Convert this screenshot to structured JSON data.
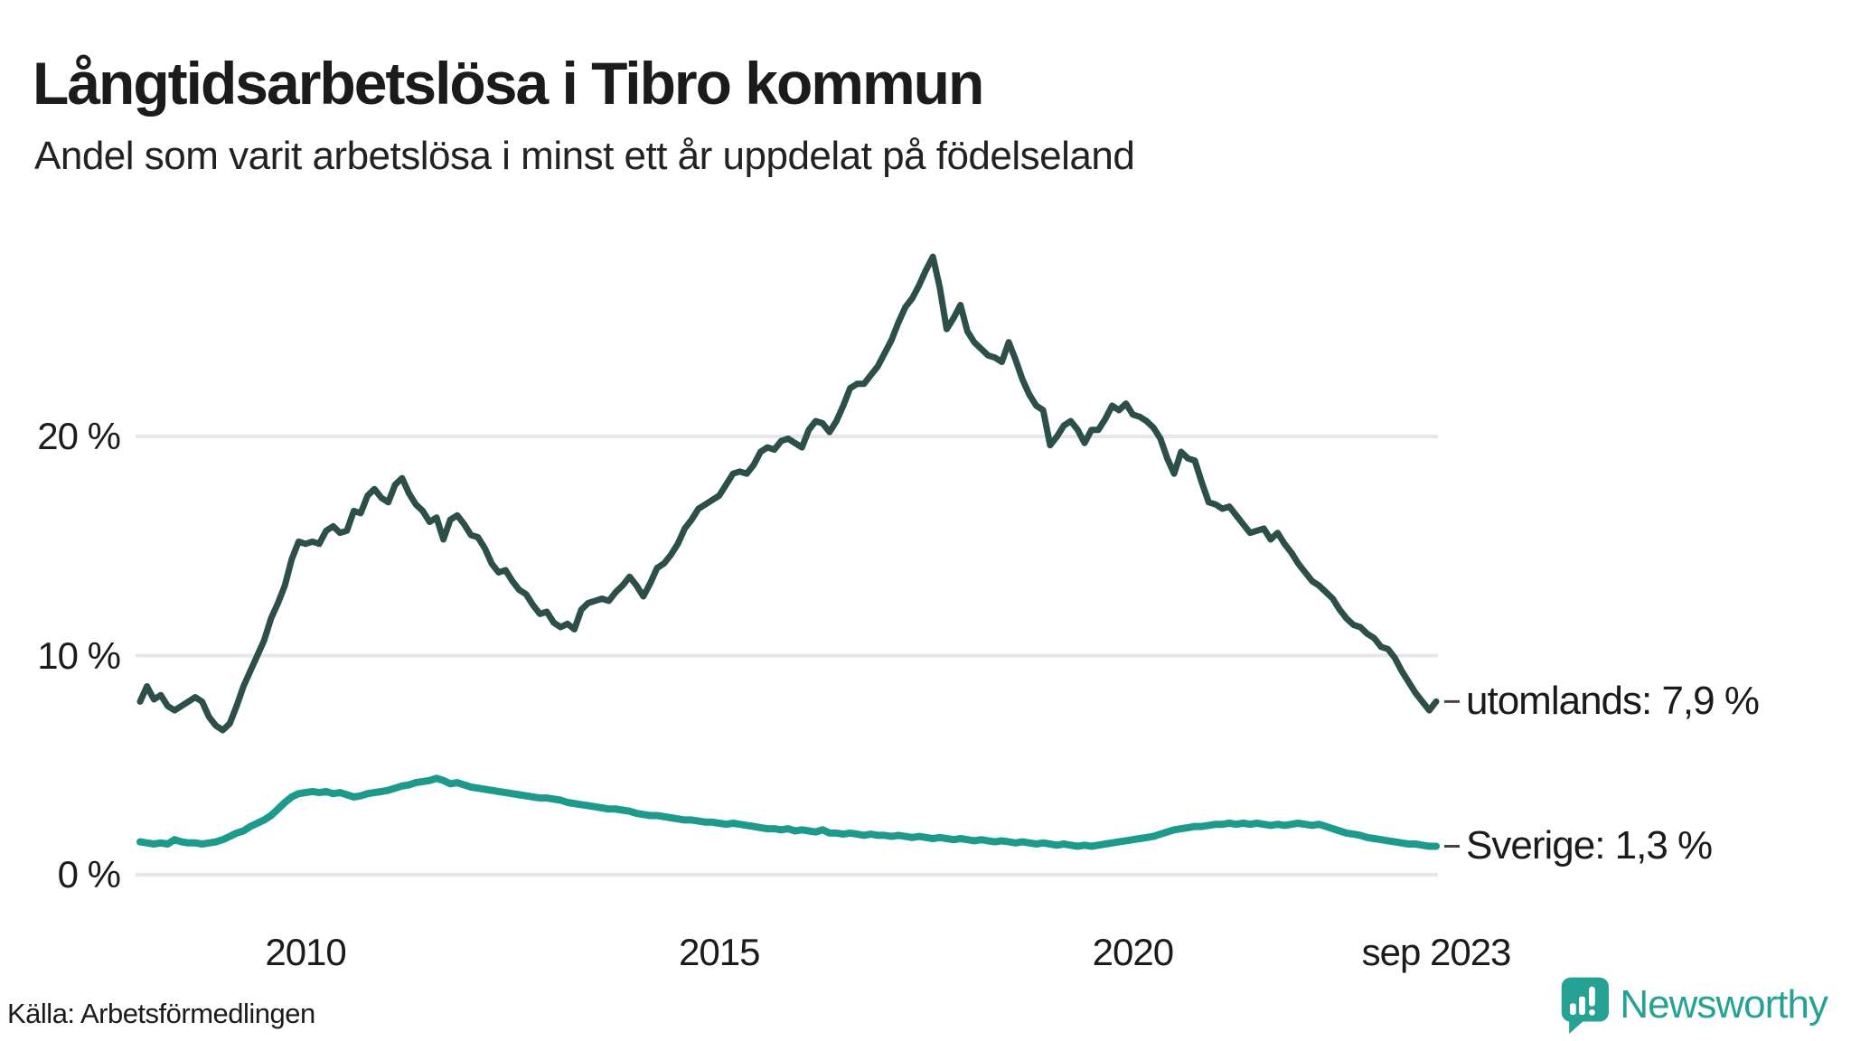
{
  "title": "Långtidsarbetslösa i Tibro kommun",
  "subtitle": "Andel som varit arbetslösa i minst ett år uppdelat på födelseland",
  "source": "Källa: Arbetsförmedlingen",
  "branding": {
    "name": "Newsworthy",
    "color": "#26a294"
  },
  "colors": {
    "background": "#ffffff",
    "grid": "#e7e7ea",
    "text": "#1b1b1b",
    "utomlands_line": "#2c4f49",
    "sverige_line": "#1d9a8c"
  },
  "chart_data": {
    "type": "line",
    "title": "Långtidsarbetslösa i Tibro kommun",
    "subtitle": "Andel som varit arbetslösa i minst ett år uppdelat på födelseland",
    "x_start": "2008-01",
    "x_end": "2023-09",
    "x_frequency": "monthly",
    "grid": "horizontal",
    "legend_position": "end-of-line-labels",
    "ylim": [
      0,
      29.5
    ],
    "unit": "%",
    "y_ticks": [
      {
        "label": "0 %",
        "value": 0
      },
      {
        "label": "10 %",
        "value": 10
      },
      {
        "label": "20 %",
        "value": 20
      }
    ],
    "x_ticks": [
      {
        "label": "2010",
        "month_index": 24
      },
      {
        "label": "2015",
        "month_index": 84
      },
      {
        "label": "2020",
        "month_index": 144
      },
      {
        "label": "sep 2023",
        "month_index": 188
      }
    ],
    "series": [
      {
        "name": "utomlands",
        "end_label": "utomlands: 7,9 %",
        "last_value": 7.9,
        "color": "#2c4f49",
        "values": [
          7.9,
          8.6,
          8.0,
          8.2,
          7.7,
          7.5,
          7.7,
          7.9,
          8.1,
          7.9,
          7.2,
          6.8,
          6.6,
          6.9,
          7.7,
          8.6,
          9.3,
          10.0,
          10.7,
          11.7,
          12.4,
          13.2,
          14.4,
          15.2,
          15.1,
          15.2,
          15.1,
          15.7,
          15.9,
          15.6,
          15.7,
          16.6,
          16.5,
          17.3,
          17.6,
          17.2,
          17.0,
          17.8,
          18.1,
          17.4,
          16.9,
          16.6,
          16.1,
          16.3,
          15.3,
          16.2,
          16.4,
          16.0,
          15.5,
          15.4,
          14.9,
          14.2,
          13.8,
          13.9,
          13.4,
          13.0,
          12.8,
          12.3,
          11.9,
          12.0,
          11.5,
          11.3,
          11.45,
          11.2,
          12.1,
          12.4,
          12.5,
          12.6,
          12.5,
          12.9,
          13.2,
          13.6,
          13.2,
          12.7,
          13.3,
          14.0,
          14.2,
          14.6,
          15.1,
          15.8,
          16.2,
          16.7,
          16.9,
          17.1,
          17.3,
          17.8,
          18.3,
          18.4,
          18.3,
          18.7,
          19.3,
          19.5,
          19.4,
          19.8,
          19.9,
          19.7,
          19.5,
          20.3,
          20.7,
          20.6,
          20.2,
          20.7,
          21.4,
          22.2,
          22.4,
          22.4,
          22.8,
          23.2,
          23.8,
          24.4,
          25.2,
          25.9,
          26.3,
          26.9,
          27.6,
          28.2,
          26.8,
          24.9,
          25.4,
          26.0,
          24.8,
          24.3,
          24.0,
          23.7,
          23.6,
          23.4,
          24.3,
          23.5,
          22.6,
          21.9,
          21.4,
          21.2,
          19.6,
          20.0,
          20.5,
          20.7,
          20.3,
          19.7,
          20.3,
          20.3,
          20.8,
          21.4,
          21.2,
          21.5,
          21.0,
          20.9,
          20.7,
          20.4,
          19.9,
          19.0,
          18.3,
          19.3,
          19.0,
          18.9,
          17.9,
          17.0,
          16.9,
          16.7,
          16.8,
          16.4,
          16.0,
          15.6,
          15.7,
          15.8,
          15.3,
          15.6,
          15.1,
          14.7,
          14.2,
          13.8,
          13.4,
          13.2,
          12.9,
          12.6,
          12.1,
          11.7,
          11.4,
          11.3,
          11.0,
          10.8,
          10.4,
          10.3,
          9.9,
          9.3,
          8.8,
          8.3,
          7.9,
          7.5,
          7.9
        ]
      },
      {
        "name": "Sverige",
        "end_label": "Sverige: 1,3 %",
        "last_value": 1.3,
        "color": "#1d9a8c",
        "values": [
          1.5,
          1.45,
          1.4,
          1.45,
          1.4,
          1.6,
          1.5,
          1.45,
          1.45,
          1.4,
          1.45,
          1.5,
          1.6,
          1.75,
          1.9,
          2.0,
          2.2,
          2.35,
          2.5,
          2.7,
          3.0,
          3.3,
          3.55,
          3.7,
          3.75,
          3.8,
          3.75,
          3.8,
          3.7,
          3.75,
          3.65,
          3.55,
          3.6,
          3.7,
          3.75,
          3.8,
          3.85,
          3.95,
          4.05,
          4.1,
          4.2,
          4.25,
          4.3,
          4.4,
          4.3,
          4.15,
          4.2,
          4.1,
          4.0,
          3.95,
          3.9,
          3.85,
          3.8,
          3.75,
          3.7,
          3.65,
          3.6,
          3.55,
          3.5,
          3.5,
          3.45,
          3.4,
          3.3,
          3.25,
          3.2,
          3.15,
          3.1,
          3.05,
          3.0,
          3.0,
          2.95,
          2.9,
          2.8,
          2.75,
          2.7,
          2.7,
          2.65,
          2.6,
          2.55,
          2.5,
          2.5,
          2.45,
          2.4,
          2.4,
          2.35,
          2.3,
          2.35,
          2.3,
          2.25,
          2.2,
          2.15,
          2.1,
          2.1,
          2.05,
          2.1,
          2.0,
          2.05,
          2.0,
          1.95,
          2.05,
          1.9,
          1.9,
          1.85,
          1.9,
          1.85,
          1.8,
          1.85,
          1.8,
          1.8,
          1.75,
          1.8,
          1.75,
          1.7,
          1.75,
          1.7,
          1.65,
          1.7,
          1.65,
          1.6,
          1.65,
          1.6,
          1.55,
          1.6,
          1.55,
          1.5,
          1.55,
          1.5,
          1.45,
          1.5,
          1.45,
          1.4,
          1.45,
          1.4,
          1.35,
          1.4,
          1.35,
          1.3,
          1.35,
          1.3,
          1.35,
          1.4,
          1.45,
          1.5,
          1.55,
          1.6,
          1.65,
          1.7,
          1.75,
          1.85,
          1.95,
          2.05,
          2.1,
          2.15,
          2.2,
          2.2,
          2.25,
          2.3,
          2.3,
          2.35,
          2.3,
          2.35,
          2.3,
          2.35,
          2.3,
          2.25,
          2.3,
          2.25,
          2.3,
          2.35,
          2.3,
          2.25,
          2.3,
          2.2,
          2.1,
          2.0,
          1.9,
          1.85,
          1.8,
          1.7,
          1.65,
          1.6,
          1.55,
          1.5,
          1.45,
          1.4,
          1.4,
          1.35,
          1.3,
          1.3
        ]
      }
    ]
  }
}
